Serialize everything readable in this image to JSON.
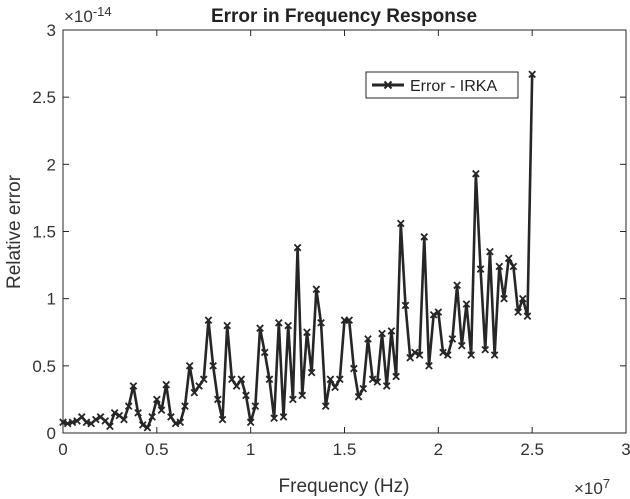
{
  "chart_data": {
    "type": "line",
    "title": "Error in Frequency Response",
    "xlabel": "Frequency (Hz)",
    "ylabel": "Relative error",
    "x_multiplier_text": "×10",
    "x_multiplier_exp": "7",
    "y_multiplier_text": "×10",
    "y_multiplier_exp": "-14",
    "xlim": [
      0,
      3
    ],
    "ylim": [
      0,
      3
    ],
    "xticks": [
      0,
      0.5,
      1,
      1.5,
      2,
      2.5,
      3
    ],
    "xtick_labels": [
      "0",
      "0.5",
      "1",
      "1.5",
      "2",
      "2.5",
      "3"
    ],
    "yticks": [
      0,
      0.5,
      1,
      1.5,
      2,
      2.5,
      3
    ],
    "ytick_labels": [
      "0",
      "0.5",
      "1",
      "1.5",
      "2",
      "2.5",
      "3"
    ],
    "grid": false,
    "legend_position": "top-right",
    "color": "#262626",
    "series": [
      {
        "name": "Error - IRKA",
        "x": [
          0.0,
          0.025,
          0.05,
          0.075,
          0.1,
          0.125,
          0.15,
          0.175,
          0.2,
          0.225,
          0.25,
          0.275,
          0.3,
          0.325,
          0.35,
          0.375,
          0.4,
          0.425,
          0.45,
          0.475,
          0.5,
          0.525,
          0.55,
          0.575,
          0.6,
          0.625,
          0.65,
          0.675,
          0.7,
          0.725,
          0.75,
          0.775,
          0.8,
          0.825,
          0.85,
          0.875,
          0.9,
          0.925,
          0.95,
          0.975,
          1.0,
          1.025,
          1.05,
          1.075,
          1.1,
          1.125,
          1.15,
          1.175,
          1.2,
          1.225,
          1.25,
          1.275,
          1.3,
          1.325,
          1.35,
          1.375,
          1.4,
          1.425,
          1.45,
          1.475,
          1.5,
          1.525,
          1.55,
          1.575,
          1.6,
          1.625,
          1.65,
          1.675,
          1.7,
          1.725,
          1.75,
          1.775,
          1.8,
          1.825,
          1.85,
          1.875,
          1.9,
          1.925,
          1.95,
          1.975,
          2.0,
          2.025,
          2.05,
          2.075,
          2.1,
          2.125,
          2.15,
          2.175,
          2.2,
          2.225,
          2.25,
          2.275,
          2.3,
          2.325,
          2.35,
          2.375,
          2.4,
          2.425,
          2.45,
          2.475,
          2.5
        ],
        "y": [
          0.08,
          0.07,
          0.08,
          0.09,
          0.12,
          0.08,
          0.07,
          0.1,
          0.12,
          0.09,
          0.05,
          0.15,
          0.13,
          0.1,
          0.2,
          0.35,
          0.15,
          0.06,
          0.04,
          0.12,
          0.25,
          0.17,
          0.36,
          0.12,
          0.07,
          0.08,
          0.2,
          0.5,
          0.3,
          0.35,
          0.4,
          0.84,
          0.5,
          0.25,
          0.1,
          0.8,
          0.4,
          0.35,
          0.4,
          0.28,
          0.08,
          0.2,
          0.78,
          0.6,
          0.4,
          0.11,
          0.82,
          0.12,
          0.8,
          0.25,
          1.38,
          0.28,
          0.75,
          0.45,
          1.07,
          0.82,
          0.2,
          0.4,
          0.34,
          0.4,
          0.84,
          0.84,
          0.48,
          0.27,
          0.33,
          0.7,
          0.4,
          0.38,
          0.74,
          0.35,
          0.76,
          0.42,
          1.56,
          0.95,
          0.56,
          0.6,
          0.58,
          1.46,
          0.5,
          0.88,
          0.9,
          0.6,
          0.58,
          0.7,
          1.1,
          0.65,
          0.96,
          0.58,
          1.93,
          1.22,
          0.62,
          1.35,
          0.58,
          1.24,
          1.0,
          1.3,
          1.24,
          0.9,
          1.0,
          0.87,
          2.67
        ]
      }
    ]
  }
}
